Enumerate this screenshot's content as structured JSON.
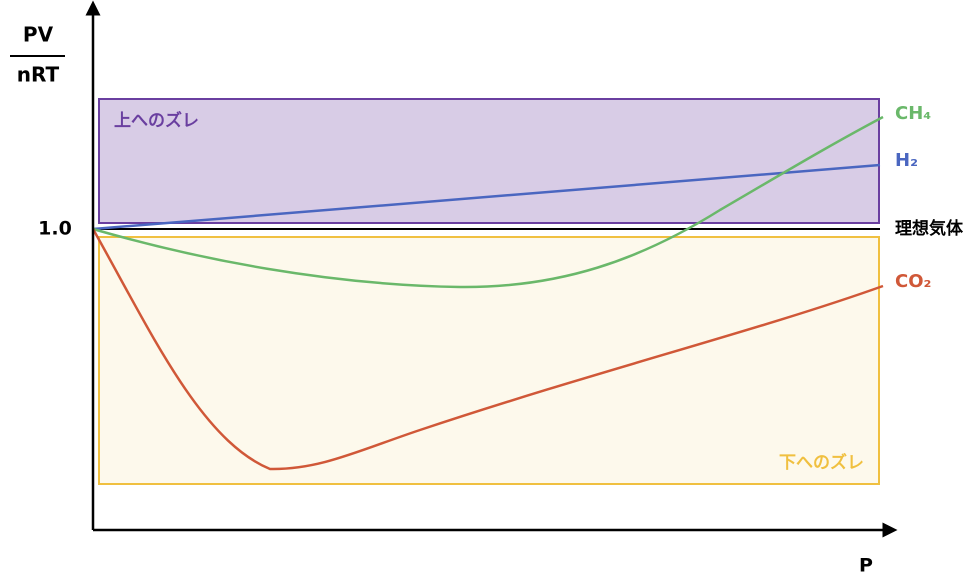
{
  "axis": {
    "y_label_top": "PV",
    "y_label_bottom": "nRT",
    "x_label": "P",
    "y_tick": "1.0"
  },
  "regions": {
    "upper": "上へのズレ",
    "lower": "下へのズレ"
  },
  "lines": [
    {
      "label": "CH₄"
    },
    {
      "label": "H₂"
    },
    {
      "label": "理想気体"
    },
    {
      "label": "CO₂"
    }
  ]
}
